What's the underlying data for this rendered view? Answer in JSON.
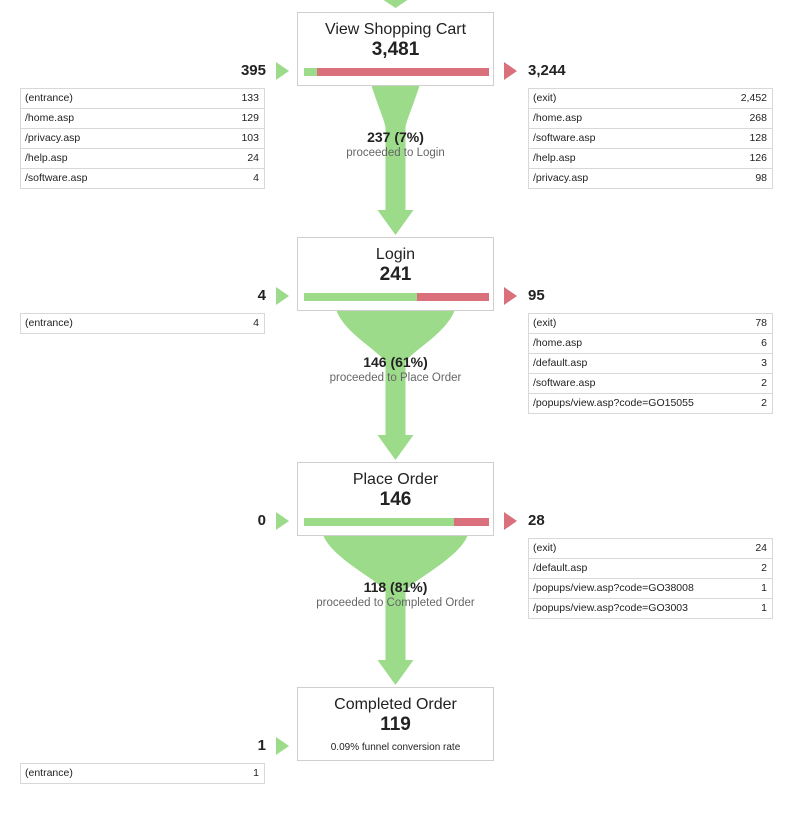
{
  "chart_data": {
    "type": "funnel",
    "steps": [
      {
        "name": "View Shopping Cart",
        "count": "3,481",
        "count_value": 3481,
        "entries": "395",
        "exits": "3,244",
        "continue_share": 0.07,
        "entry_sources": [
          {
            "page": "(entrance)",
            "count": "133"
          },
          {
            "page": "/home.asp",
            "count": "129"
          },
          {
            "page": "/privacy.asp",
            "count": "103"
          },
          {
            "page": "/help.asp",
            "count": "24"
          },
          {
            "page": "/software.asp",
            "count": "4"
          }
        ],
        "exit_destinations": [
          {
            "page": "(exit)",
            "count": "2,452"
          },
          {
            "page": "/home.asp",
            "count": "268"
          },
          {
            "page": "/software.asp",
            "count": "128"
          },
          {
            "page": "/help.asp",
            "count": "126"
          },
          {
            "page": "/privacy.asp",
            "count": "98"
          }
        ],
        "proceeded": {
          "value": "237 (7%)",
          "label": "proceeded to Login"
        }
      },
      {
        "name": "Login",
        "count": "241",
        "count_value": 241,
        "entries": "4",
        "exits": "95",
        "continue_share": 0.61,
        "entry_sources": [
          {
            "page": "(entrance)",
            "count": "4"
          }
        ],
        "exit_destinations": [
          {
            "page": "(exit)",
            "count": "78"
          },
          {
            "page": "/home.asp",
            "count": "6"
          },
          {
            "page": "/default.asp",
            "count": "3"
          },
          {
            "page": "/software.asp",
            "count": "2"
          },
          {
            "page": "/popups/view.asp?code=GO15055",
            "count": "2"
          }
        ],
        "proceeded": {
          "value": "146 (61%)",
          "label": "proceeded to Place Order"
        }
      },
      {
        "name": "Place Order",
        "count": "146",
        "count_value": 146,
        "entries": "0",
        "exits": "28",
        "continue_share": 0.81,
        "entry_sources": [],
        "exit_destinations": [
          {
            "page": "(exit)",
            "count": "24"
          },
          {
            "page": "/default.asp",
            "count": "2"
          },
          {
            "page": "/popups/view.asp?code=GO38008",
            "count": "1"
          },
          {
            "page": "/popups/view.asp?code=GO3003",
            "count": "1"
          }
        ],
        "proceeded": {
          "value": "118 (81%)",
          "label": "proceeded to Completed Order"
        }
      },
      {
        "name": "Completed Order",
        "count": "119",
        "count_value": 119,
        "entries": "1",
        "conversion_rate": "0.09% funnel conversion rate",
        "entry_sources": [
          {
            "page": "(entrance)",
            "count": "1"
          }
        ],
        "exit_destinations": []
      }
    ]
  },
  "colors": {
    "continue": "#9cdb8a",
    "exit": "#d9707b",
    "border": "#cfcfcf"
  }
}
